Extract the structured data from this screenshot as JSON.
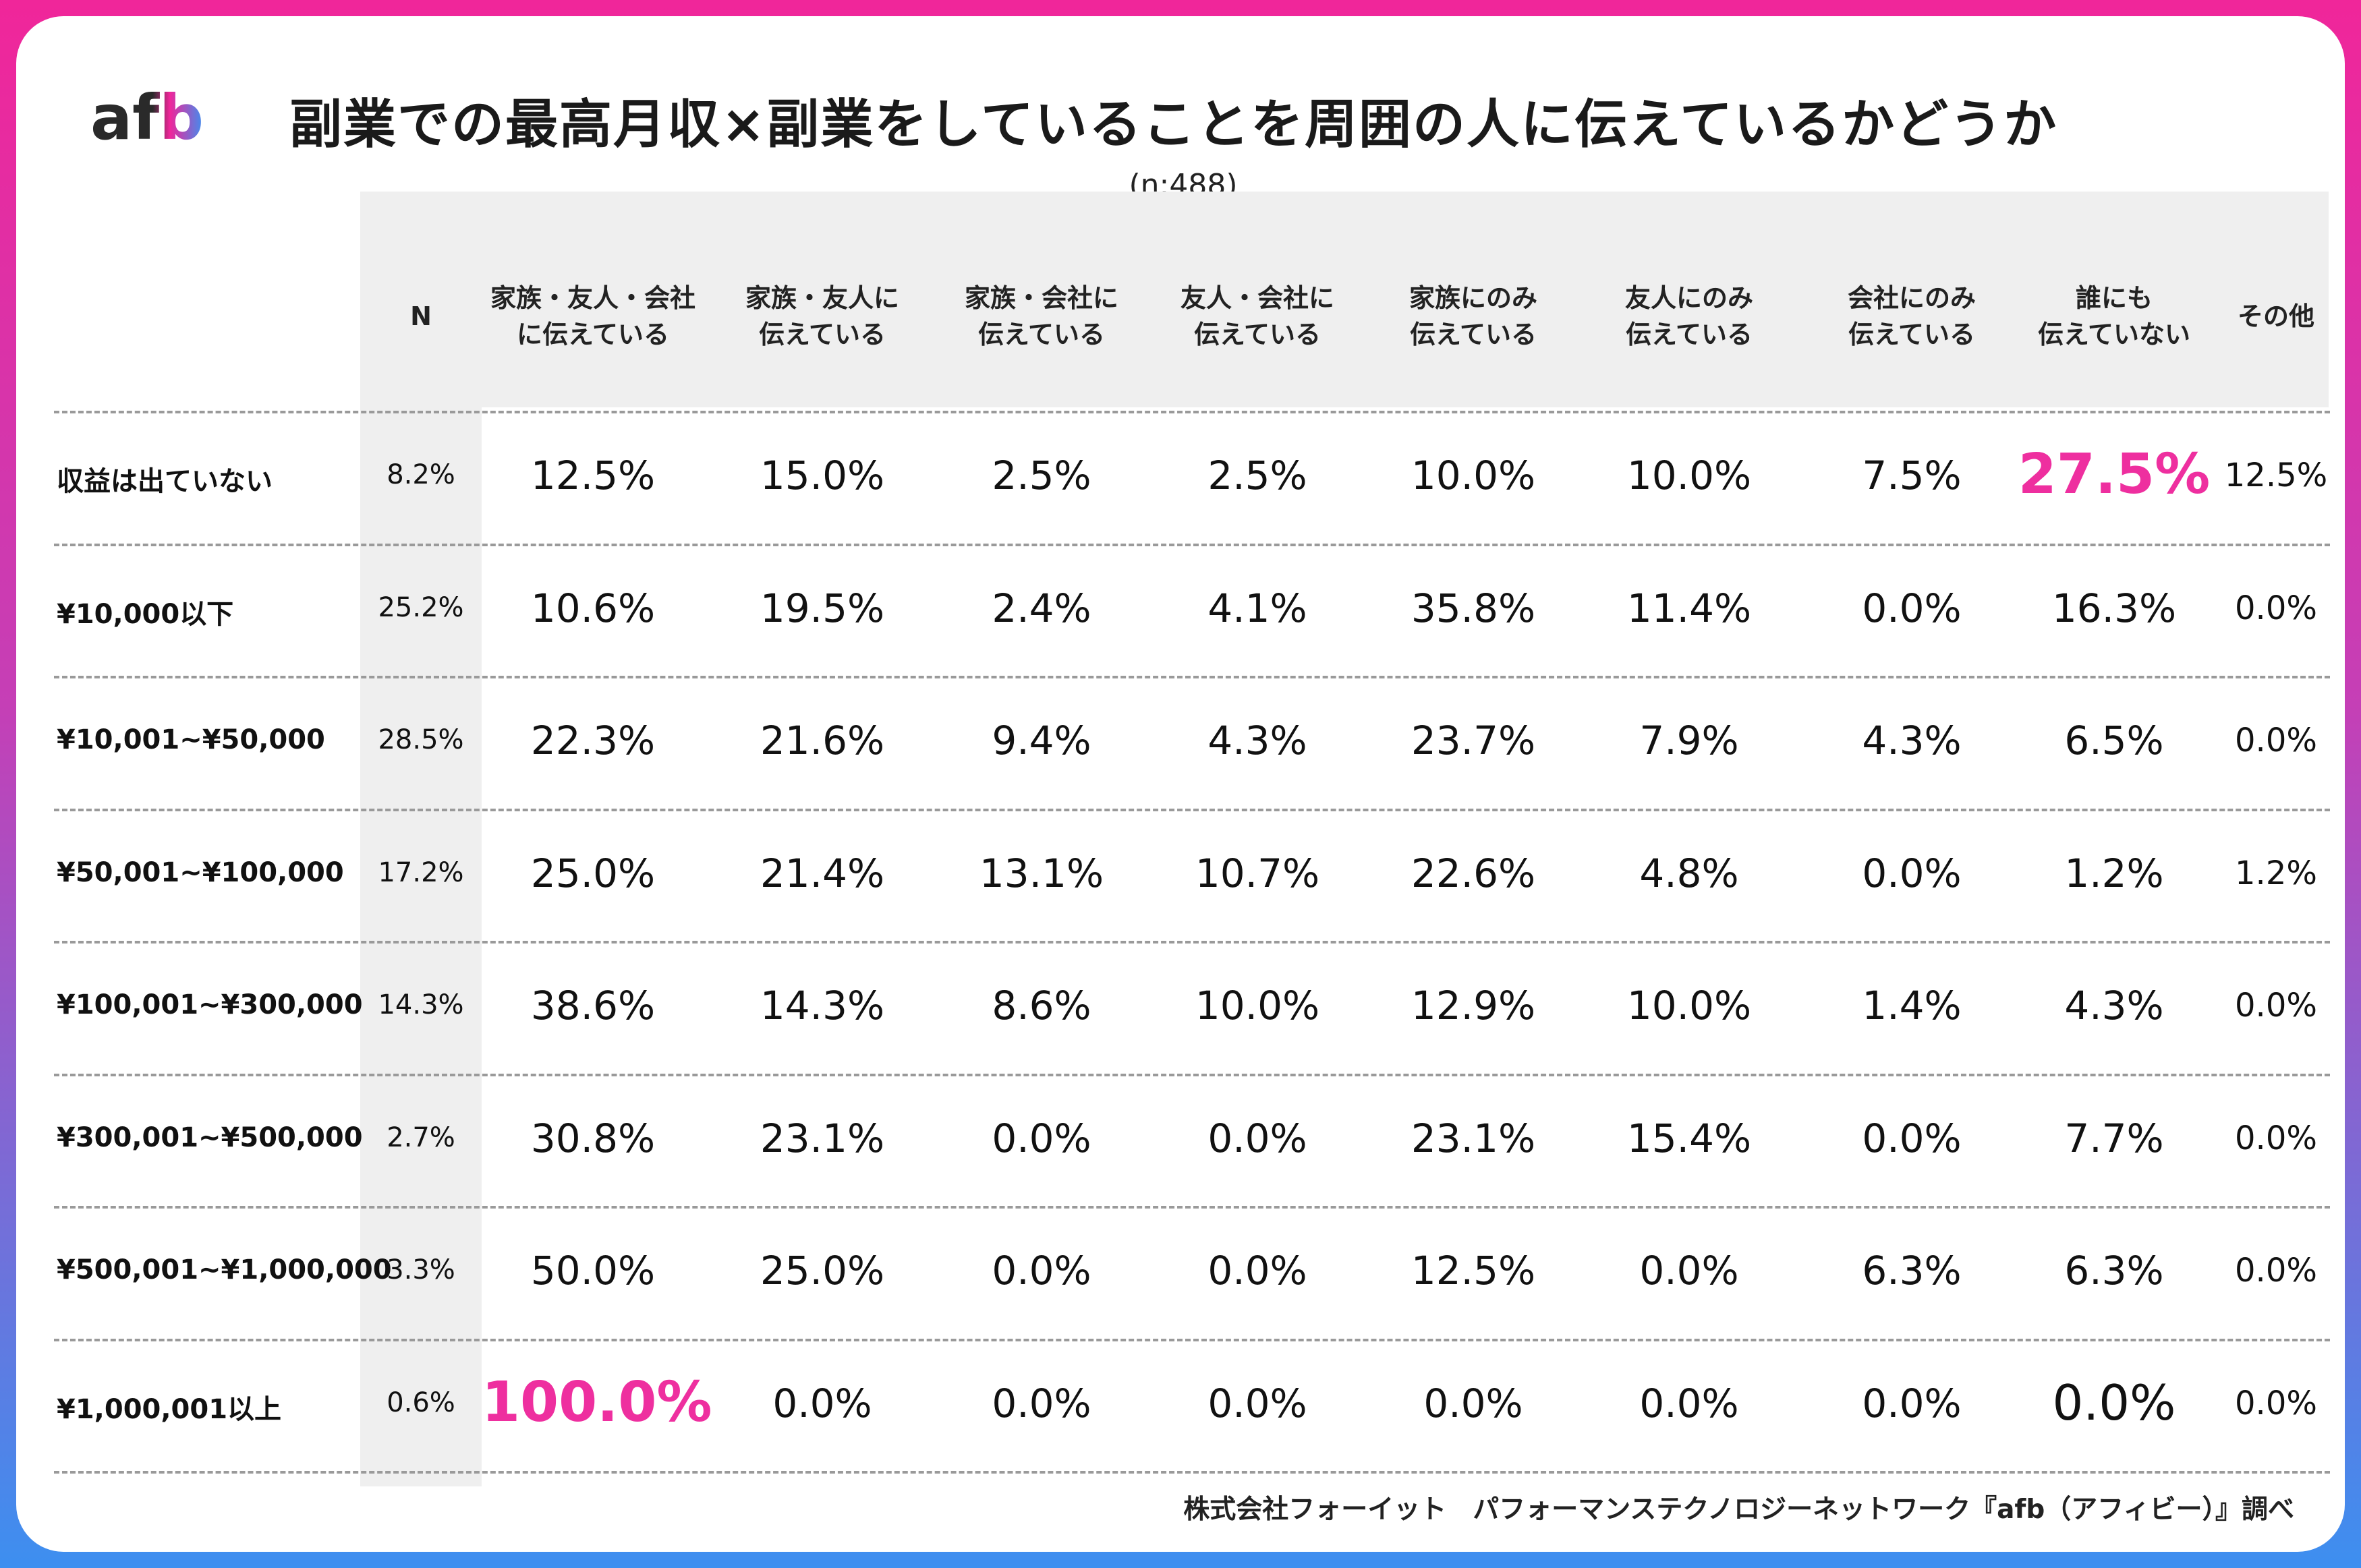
{
  "header": {
    "logo_text": "afb",
    "title": "副業での最高月収×副業をしていることを周囲の人に伝えているかどうか",
    "subtitle": "(n:488)"
  },
  "chart_data": {
    "type": "table",
    "title": "副業での最高月収×副業をしていることを周囲の人に伝えているかどうか",
    "subtitle": "(n:488)",
    "n_header": "N",
    "columns": [
      "家族・友人・会社\nに伝えている",
      "家族・友人に\n伝えている",
      "家族・会社に\n伝えている",
      "友人・会社に\n伝えている",
      "家族にのみ\n伝えている",
      "友人にのみ\n伝えている",
      "会社にのみ\n伝えている",
      "誰にも\n伝えていない",
      "その他"
    ],
    "rows": [
      {
        "label": "収益は出ていない",
        "n": "8.2%",
        "values": [
          "12.5%",
          "15.0%",
          "2.5%",
          "2.5%",
          "10.0%",
          "10.0%",
          "7.5%",
          "27.5%",
          "12.5%"
        ]
      },
      {
        "label": "¥10,000以下",
        "n": "25.2%",
        "values": [
          "10.6%",
          "19.5%",
          "2.4%",
          "4.1%",
          "35.8%",
          "11.4%",
          "0.0%",
          "16.3%",
          "0.0%"
        ]
      },
      {
        "label": "¥10,001~¥50,000",
        "n": "28.5%",
        "values": [
          "22.3%",
          "21.6%",
          "9.4%",
          "4.3%",
          "23.7%",
          "7.9%",
          "4.3%",
          "6.5%",
          "0.0%"
        ]
      },
      {
        "label": "¥50,001~¥100,000",
        "n": "17.2%",
        "values": [
          "25.0%",
          "21.4%",
          "13.1%",
          "10.7%",
          "22.6%",
          "4.8%",
          "0.0%",
          "1.2%",
          "1.2%"
        ]
      },
      {
        "label": "¥100,001~¥300,000",
        "n": "14.3%",
        "values": [
          "38.6%",
          "14.3%",
          "8.6%",
          "10.0%",
          "12.9%",
          "10.0%",
          "1.4%",
          "4.3%",
          "0.0%"
        ]
      },
      {
        "label": "¥300,001~¥500,000",
        "n": "2.7%",
        "values": [
          "30.8%",
          "23.1%",
          "0.0%",
          "0.0%",
          "23.1%",
          "15.4%",
          "0.0%",
          "7.7%",
          "0.0%"
        ]
      },
      {
        "label": "¥500,001~¥1,000,000",
        "n": "3.3%",
        "values": [
          "50.0%",
          "25.0%",
          "0.0%",
          "0.0%",
          "12.5%",
          "0.0%",
          "6.3%",
          "6.3%",
          "0.0%"
        ]
      },
      {
        "label": "¥1,000,001以上",
        "n": "0.6%",
        "values": [
          "100.0%",
          "0.0%",
          "0.0%",
          "0.0%",
          "0.0%",
          "0.0%",
          "0.0%",
          "0.0%",
          "0.0%"
        ]
      }
    ],
    "highlights": [
      {
        "row": 0,
        "col": 7,
        "color": "#ee2f9f"
      },
      {
        "row": 7,
        "col": 0,
        "color": "#ee2f9f"
      }
    ],
    "emphasized": [
      {
        "row": 7,
        "col": 7
      }
    ]
  },
  "footer": {
    "source": "株式会社フォーイット　パフォーマンステクノロジーネットワーク『afb（アフィビー）』調べ"
  },
  "colors": {
    "accent_pink": "#ee2f9f",
    "gradient_top": "#f0269a",
    "gradient_bottom": "#3d8ff0",
    "header_bg": "#efefef"
  }
}
